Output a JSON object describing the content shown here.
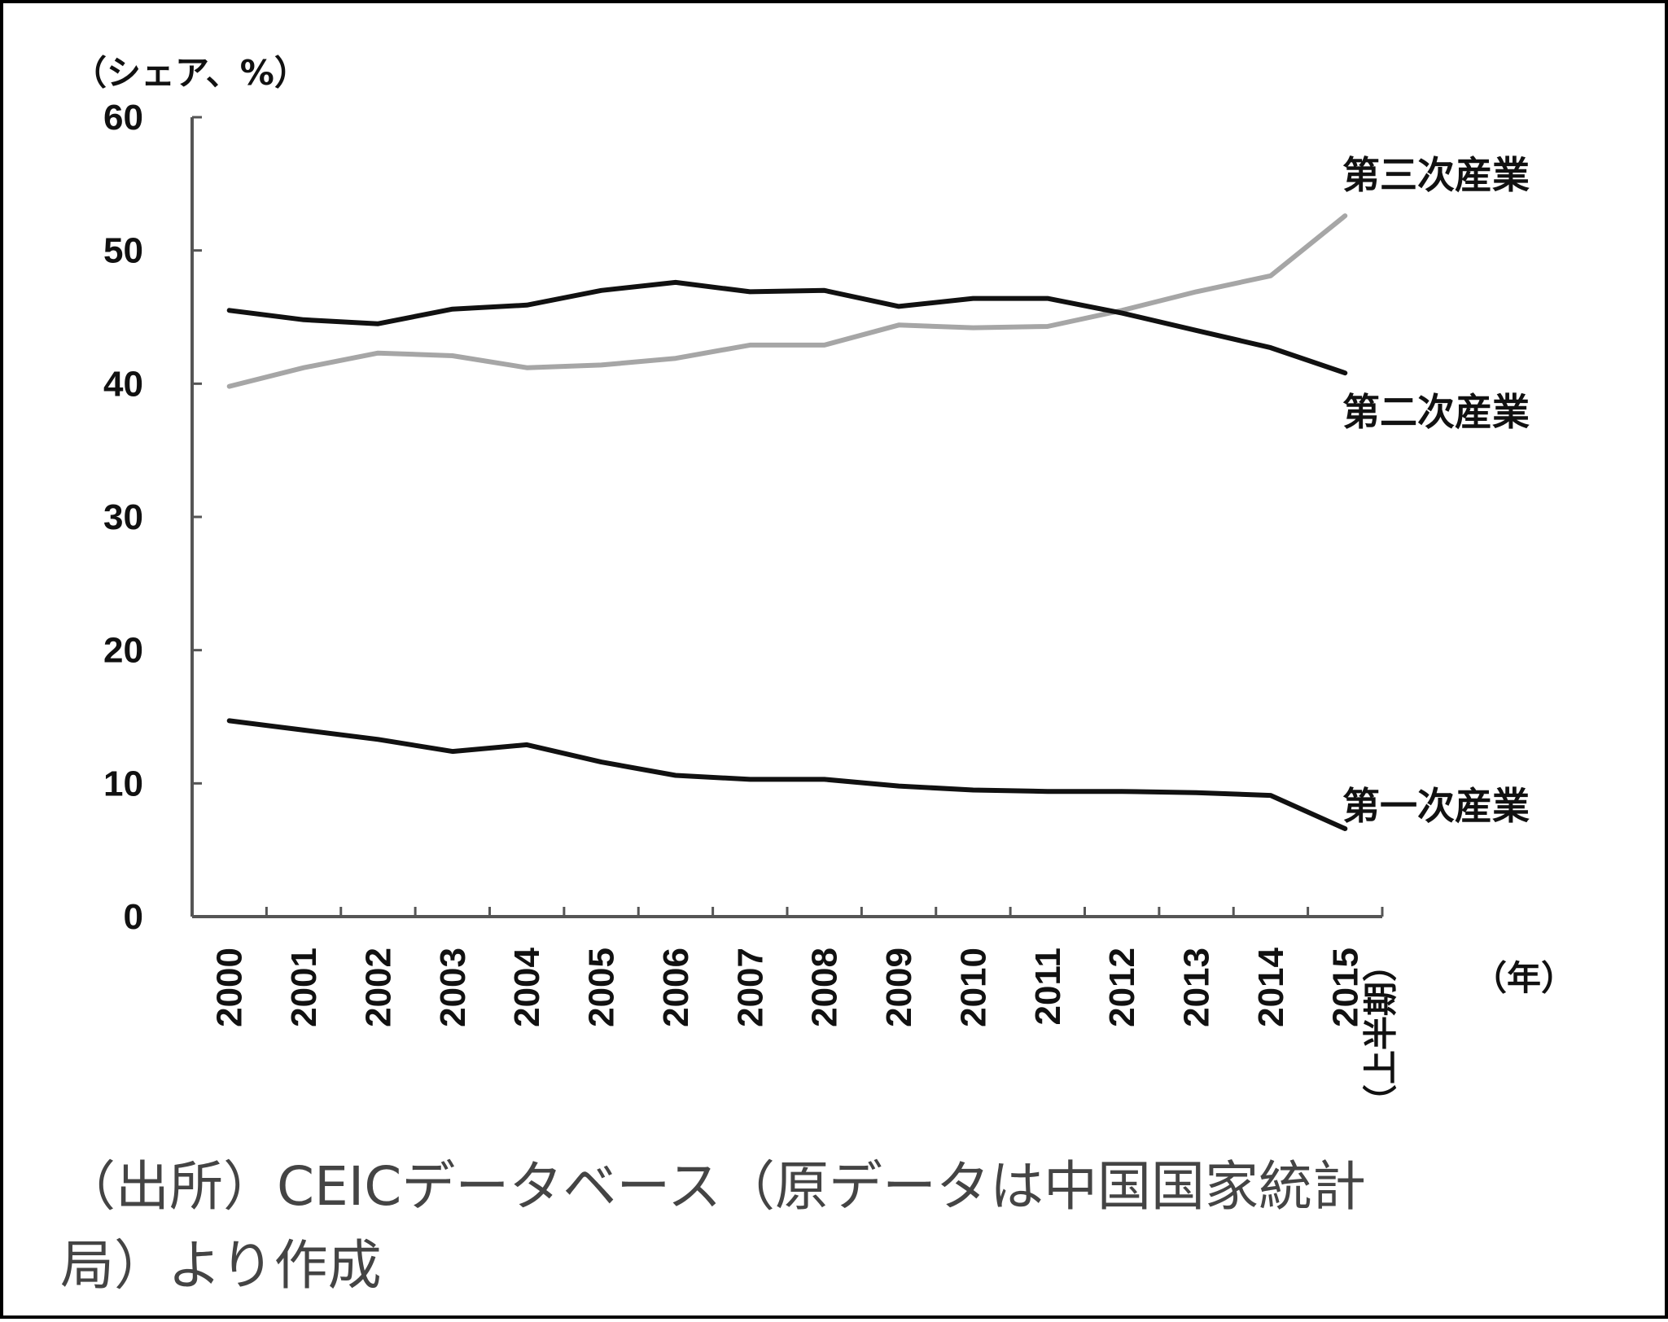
{
  "chart_data": {
    "type": "line",
    "ylabel": "（シェア、%）",
    "xunit": "（年）",
    "ylim": [
      0,
      60
    ],
    "yticks": [
      0,
      10,
      20,
      30,
      40,
      50,
      60
    ],
    "categories": [
      "2000",
      "2001",
      "2002",
      "2003",
      "2004",
      "2005",
      "2006",
      "2007",
      "2008",
      "2009",
      "2010",
      "2011",
      "2012",
      "2013",
      "2014",
      "2015"
    ],
    "last_category_note": "（上半期）",
    "grid": false,
    "legend": "inline labels at line ends",
    "series": [
      {
        "name": "第三次産業",
        "color": "#a6a6a6",
        "values": [
          39.8,
          41.2,
          42.3,
          42.1,
          41.2,
          41.4,
          41.9,
          42.9,
          42.9,
          44.4,
          44.2,
          44.3,
          45.5,
          46.9,
          48.1,
          52.6
        ]
      },
      {
        "name": "第二次産業",
        "color": "#111111",
        "values": [
          45.5,
          44.8,
          44.5,
          45.6,
          45.9,
          47.0,
          47.6,
          46.9,
          47.0,
          45.8,
          46.4,
          46.4,
          45.3,
          44.0,
          42.7,
          40.8
        ]
      },
      {
        "name": "第一次産業",
        "color": "#111111",
        "values": [
          14.7,
          14.0,
          13.3,
          12.4,
          12.9,
          11.6,
          10.6,
          10.3,
          10.3,
          9.8,
          9.5,
          9.4,
          9.4,
          9.3,
          9.1,
          6.6
        ]
      }
    ]
  },
  "source_note": {
    "line1": "（出所）CEICデータベース（原データは中国国家統計",
    "line2": "局）より作成"
  }
}
